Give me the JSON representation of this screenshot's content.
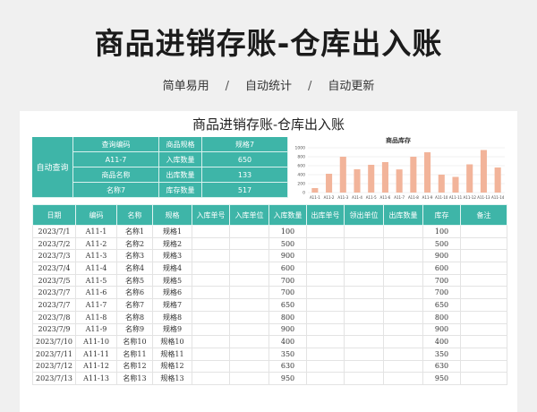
{
  "banner": {
    "title": "商品进销存账-仓库出入账",
    "tags": [
      "简单易用",
      "自动统计",
      "自动更新"
    ],
    "separator": "/"
  },
  "sheet": {
    "title": "商品进销存账-仓库出入账"
  },
  "query": {
    "label": "自动查询",
    "rows": [
      [
        "查询编码",
        "商品规格",
        "规格7"
      ],
      [
        "A11-7",
        "入库数量",
        "650"
      ],
      [
        "商品名称",
        "出库数量",
        "133"
      ],
      [
        "名称7",
        "库存数量",
        "517"
      ]
    ]
  },
  "colors": {
    "accent": "#3eb5a8",
    "bar": "#f2b49a"
  },
  "chart_data": {
    "type": "bar",
    "title": "商品库存",
    "categories": [
      "A11-1",
      "A11-2",
      "A11-3",
      "A11-4",
      "A11-5",
      "A11-6",
      "A11-7",
      "A11-8",
      "A11-9",
      "A11-10",
      "A11-11",
      "A11-12",
      "A11-13",
      "A11-14"
    ],
    "values": [
      100,
      420,
      800,
      520,
      620,
      680,
      517,
      800,
      900,
      400,
      350,
      630,
      950,
      560
    ],
    "ylim": [
      0,
      1000
    ],
    "yticks": [
      "0",
      "200",
      "400",
      "600",
      "800",
      "1000"
    ],
    "grid": true
  },
  "table": {
    "headers": [
      "日期",
      "编码",
      "名称",
      "规格",
      "入库单号",
      "入库单位",
      "入库数量",
      "出库单号",
      "领出单位",
      "出库数量",
      "库存",
      "备注"
    ],
    "rows": [
      [
        "2023/7/1",
        "A11-1",
        "名称1",
        "规格1",
        "",
        "",
        "100",
        "",
        "",
        "",
        "100",
        ""
      ],
      [
        "2023/7/2",
        "A11-2",
        "名称2",
        "规格2",
        "",
        "",
        "500",
        "",
        "",
        "",
        "500",
        ""
      ],
      [
        "2023/7/3",
        "A11-3",
        "名称3",
        "规格3",
        "",
        "",
        "900",
        "",
        "",
        "",
        "900",
        ""
      ],
      [
        "2023/7/4",
        "A11-4",
        "名称4",
        "规格4",
        "",
        "",
        "600",
        "",
        "",
        "",
        "600",
        ""
      ],
      [
        "2023/7/5",
        "A11-5",
        "名称5",
        "规格5",
        "",
        "",
        "700",
        "",
        "",
        "",
        "700",
        ""
      ],
      [
        "2023/7/7",
        "A11-6",
        "名称6",
        "规格6",
        "",
        "",
        "700",
        "",
        "",
        "",
        "700",
        ""
      ],
      [
        "2023/7/7",
        "A11-7",
        "名称7",
        "规格7",
        "",
        "",
        "650",
        "",
        "",
        "",
        "650",
        ""
      ],
      [
        "2023/7/8",
        "A11-8",
        "名称8",
        "规格8",
        "",
        "",
        "800",
        "",
        "",
        "",
        "800",
        ""
      ],
      [
        "2023/7/9",
        "A11-9",
        "名称9",
        "规格9",
        "",
        "",
        "900",
        "",
        "",
        "",
        "900",
        ""
      ],
      [
        "2023/7/10",
        "A11-10",
        "名称10",
        "规格10",
        "",
        "",
        "400",
        "",
        "",
        "",
        "400",
        ""
      ],
      [
        "2023/7/11",
        "A11-11",
        "名称11",
        "规格11",
        "",
        "",
        "350",
        "",
        "",
        "",
        "350",
        ""
      ],
      [
        "2023/7/12",
        "A11-12",
        "名称12",
        "规格12",
        "",
        "",
        "630",
        "",
        "",
        "",
        "630",
        ""
      ],
      [
        "2023/7/13",
        "A11-13",
        "名称13",
        "规格13",
        "",
        "",
        "950",
        "",
        "",
        "",
        "950",
        ""
      ]
    ]
  }
}
